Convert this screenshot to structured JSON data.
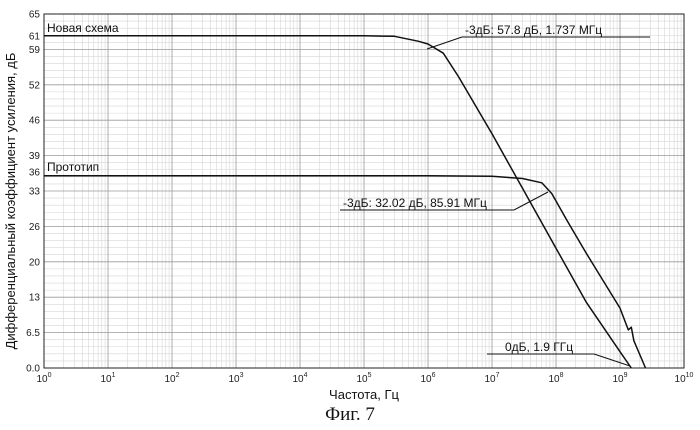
{
  "chart_data": {
    "type": "line",
    "xlabel": "Частота, Гц",
    "ylabel": "Дифференциальный коэффициент усиления, дБ",
    "x_scale": "log",
    "xlim": [
      1,
      10000000000
    ],
    "ylim": [
      0,
      65
    ],
    "grid": true,
    "x_ticks": [
      {
        "base": "10",
        "exp": "0",
        "value": 1
      },
      {
        "base": "10",
        "exp": "1",
        "value": 10
      },
      {
        "base": "10",
        "exp": "2",
        "value": 100
      },
      {
        "base": "10",
        "exp": "3",
        "value": 1000
      },
      {
        "base": "10",
        "exp": "4",
        "value": 10000
      },
      {
        "base": "10",
        "exp": "5",
        "value": 100000
      },
      {
        "base": "10",
        "exp": "6",
        "value": 1000000
      },
      {
        "base": "10",
        "exp": "7",
        "value": 10000000
      },
      {
        "base": "10",
        "exp": "8",
        "value": 100000000
      },
      {
        "base": "10",
        "exp": "9",
        "value": 1000000000
      },
      {
        "base": "10",
        "exp": "10",
        "value": 10000000000
      }
    ],
    "y_ticks": [
      {
        "label": "0.0",
        "value": 0
      },
      {
        "label": "6.5",
        "value": 6.5
      },
      {
        "label": "13",
        "value": 13
      },
      {
        "label": "20",
        "value": 19.5
      },
      {
        "label": "26",
        "value": 26
      },
      {
        "label": "33",
        "value": 32.5
      },
      {
        "label": "39",
        "value": 39
      },
      {
        "label": "46",
        "value": 45.5
      },
      {
        "label": "52",
        "value": 52
      },
      {
        "label": "59",
        "value": 58.5
      },
      {
        "label": "65",
        "value": 65
      }
    ],
    "extra_y_labels": [
      {
        "label": "61",
        "value": 61
      },
      {
        "label": "36",
        "value": 36
      }
    ],
    "series": [
      {
        "name": "Новая схема",
        "x": [
          1,
          10,
          100,
          1000,
          10000,
          100000,
          300000,
          700000,
          1000000,
          1737000,
          3000000,
          10000000,
          30000000,
          100000000,
          300000000,
          1000000000,
          1500000000
        ],
        "y": [
          61,
          61,
          61,
          61,
          61,
          61,
          60.9,
          60,
          59.5,
          57.8,
          53.5,
          43,
          33,
          22,
          12,
          3,
          0
        ]
      },
      {
        "name": "Прототип",
        "x": [
          1,
          10,
          100,
          1000,
          10000,
          100000,
          1000000,
          10000000,
          30000000,
          60000000,
          85910000,
          150000000,
          300000000,
          1000000000,
          1350000000,
          1500000000,
          1650000000,
          2500000000
        ],
        "y": [
          35.3,
          35.3,
          35.3,
          35.3,
          35.3,
          35.3,
          35.3,
          35.2,
          34.8,
          34,
          32.02,
          27,
          21,
          11,
          7,
          7.5,
          5,
          0
        ]
      }
    ],
    "annotations": [
      {
        "text": "-3дБ: 57.8 дБ, 1.737 МГц",
        "x": 1737000,
        "y": 57.8
      },
      {
        "text": "-3дБ: 32.02 дБ, 85.91 МГц",
        "x": 85910000,
        "y": 32.02
      },
      {
        "text": "0дБ, 1.9 ГГц",
        "x": 1900000000,
        "y": 0
      }
    ]
  },
  "caption": "Фиг. 7"
}
